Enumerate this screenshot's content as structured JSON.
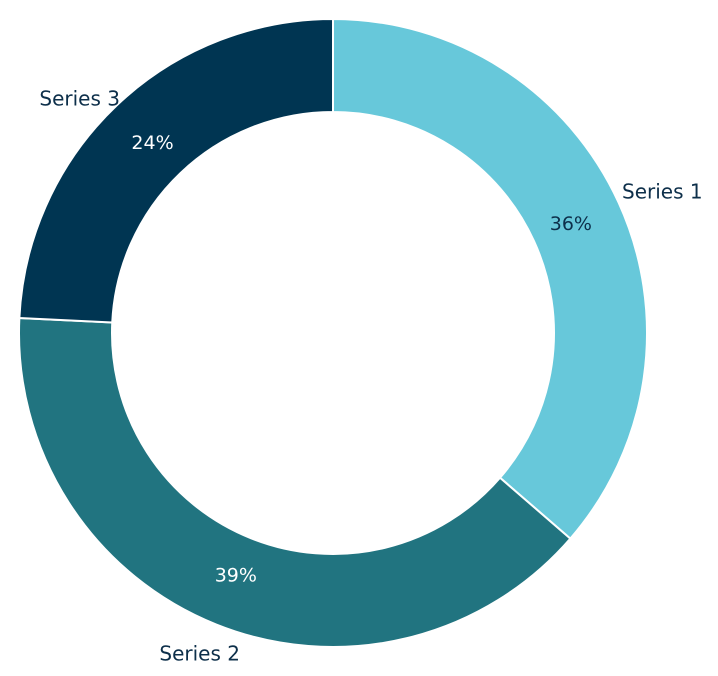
{
  "chart_data": {
    "type": "pie",
    "variant": "donut",
    "title": "",
    "series": [
      {
        "name": "Series 1",
        "value": 36,
        "label": "36%",
        "color": "#67c8da",
        "label_color": "#0d2f4a"
      },
      {
        "name": "Series 2",
        "value": 39,
        "label": "39%",
        "color": "#217480",
        "label_color": "#ffffff"
      },
      {
        "name": "Series 3",
        "value": 24,
        "label": "24%",
        "color": "#003552",
        "label_color": "#ffffff"
      }
    ],
    "legend": "none",
    "start_angle": "12 o'clock",
    "direction": "clockwise"
  }
}
